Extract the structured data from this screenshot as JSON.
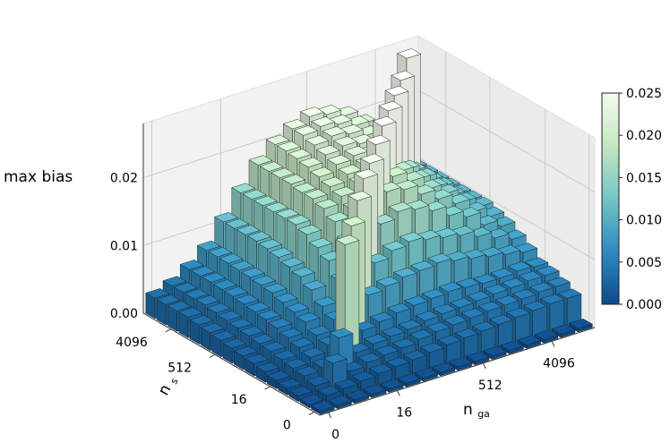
{
  "chart_data": {
    "type": "bar3d",
    "zlabel": "max bias",
    "xlabel_main": "n",
    "xlabel_sub": "ga",
    "ylabel_main": "n",
    "ylabel_sub": "s",
    "xticks": [
      "0",
      "16",
      "512",
      "4096"
    ],
    "yticks": [
      "0",
      "16",
      "512",
      "4096"
    ],
    "zticks": [
      "0.00",
      "0.01",
      "0.02"
    ],
    "zlim": [
      0,
      0.028
    ],
    "grid": true,
    "colorbar": {
      "ticks": [
        "0.000",
        "0.005",
        "0.010",
        "0.015",
        "0.020",
        "0.025"
      ],
      "range": [
        0,
        0.025
      ],
      "colors": [
        "#0c4a8a",
        "#2f8bbf",
        "#73c5c6",
        "#c5e6c1",
        "#f5fbf1"
      ]
    },
    "x_count": 16,
    "y_count": 16,
    "z_rows": [
      [
        0.0005,
        0.0005,
        0.0005,
        0.0005,
        0.0005,
        0.0005,
        0.0005,
        0.0005,
        0.0005,
        0.0005,
        0.0005,
        0.0005,
        0.0005,
        0.0005,
        0.0005,
        0.0005
      ],
      [
        0.0005,
        0.001,
        0.0012,
        0.0015,
        0.0018,
        0.002,
        0.0022,
        0.0025,
        0.0028,
        0.003,
        0.0032,
        0.0034,
        0.0036,
        0.0038,
        0.004,
        0.004
      ],
      [
        0.0008,
        0.0015,
        0.004,
        0.002,
        0.0025,
        0.0028,
        0.003,
        0.0035,
        0.0038,
        0.004,
        0.0042,
        0.0044,
        0.0045,
        0.0046,
        0.0048,
        0.0048
      ],
      [
        0.001,
        0.002,
        0.0025,
        0.006,
        0.003,
        0.0035,
        0.0038,
        0.004,
        0.0045,
        0.0047,
        0.0048,
        0.005,
        0.0052,
        0.0053,
        0.0055,
        0.0055
      ],
      [
        0.0012,
        0.0022,
        0.003,
        0.004,
        0.018,
        0.0045,
        0.005,
        0.0055,
        0.0058,
        0.006,
        0.0062,
        0.006,
        0.0058,
        0.0058,
        0.006,
        0.0058
      ],
      [
        0.0015,
        0.0025,
        0.0035,
        0.0045,
        0.006,
        0.019,
        0.008,
        0.0085,
        0.009,
        0.0092,
        0.0095,
        0.009,
        0.0085,
        0.008,
        0.0075,
        0.007
      ],
      [
        0.0018,
        0.0028,
        0.004,
        0.0055,
        0.007,
        0.01,
        0.021,
        0.011,
        0.012,
        0.0125,
        0.012,
        0.0115,
        0.011,
        0.01,
        0.009,
        0.008
      ],
      [
        0.002,
        0.003,
        0.0045,
        0.006,
        0.0085,
        0.012,
        0.014,
        0.0225,
        0.015,
        0.016,
        0.0155,
        0.0145,
        0.013,
        0.012,
        0.01,
        0.009
      ],
      [
        0.0022,
        0.0032,
        0.0048,
        0.0065,
        0.0095,
        0.013,
        0.016,
        0.017,
        0.023,
        0.018,
        0.0175,
        0.016,
        0.0145,
        0.013,
        0.011,
        0.0095
      ],
      [
        0.0024,
        0.0034,
        0.005,
        0.007,
        0.01,
        0.014,
        0.017,
        0.018,
        0.019,
        0.024,
        0.0185,
        0.017,
        0.015,
        0.0135,
        0.0115,
        0.01
      ],
      [
        0.0026,
        0.0036,
        0.0052,
        0.0072,
        0.0105,
        0.0145,
        0.0175,
        0.0185,
        0.0195,
        0.02,
        0.025,
        0.0175,
        0.0155,
        0.0135,
        0.0115,
        0.01
      ],
      [
        0.0028,
        0.0038,
        0.0054,
        0.0074,
        0.0108,
        0.0145,
        0.0175,
        0.019,
        0.02,
        0.0205,
        0.02,
        0.0255,
        0.016,
        0.014,
        0.0118,
        0.01
      ],
      [
        0.003,
        0.004,
        0.0055,
        0.0075,
        0.011,
        0.0145,
        0.0178,
        0.0195,
        0.0205,
        0.021,
        0.0205,
        0.0195,
        0.026,
        0.014,
        0.0118,
        0.01
      ],
      [
        0.003,
        0.004,
        0.0056,
        0.0076,
        0.011,
        0.0145,
        0.0178,
        0.0198,
        0.021,
        0.0215,
        0.021,
        0.02,
        0.018,
        0.0265,
        0.0118,
        0.01
      ],
      [
        0.003,
        0.004,
        0.0056,
        0.0076,
        0.011,
        0.0145,
        0.0178,
        0.02,
        0.0215,
        0.022,
        0.0215,
        0.0205,
        0.0185,
        0.015,
        0.028,
        0.01
      ],
      [
        0.003,
        0.004,
        0.0056,
        0.0076,
        0.011,
        0.0145,
        0.0178,
        0.02,
        0.0215,
        0.0225,
        0.022,
        0.021,
        0.019,
        0.0155,
        0.012,
        0.01
      ]
    ]
  }
}
